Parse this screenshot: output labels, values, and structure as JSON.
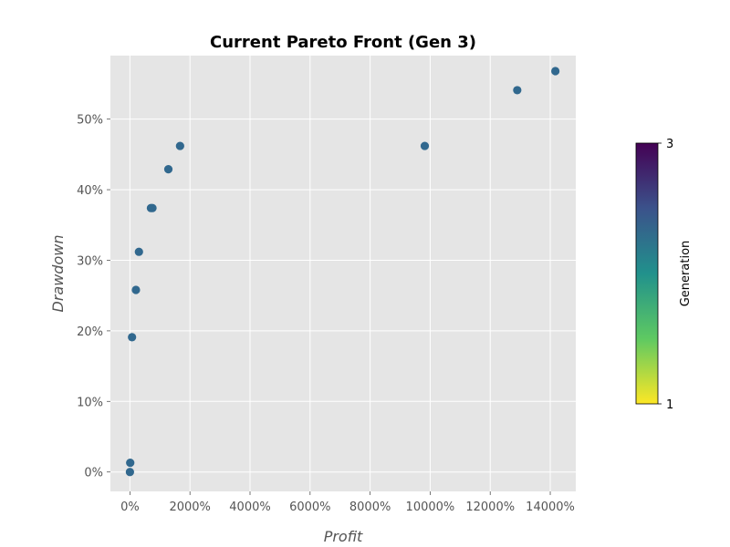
{
  "chart_data": {
    "type": "scatter",
    "title": "Current Pareto Front (Gen 3)",
    "xlabel": "Profit",
    "ylabel": "Drawdown",
    "x_unit": "%",
    "y_unit": "%",
    "xlim": [
      -650,
      14850
    ],
    "ylim": [
      -2.75,
      59.0
    ],
    "xticks": [
      0,
      2000,
      4000,
      6000,
      8000,
      10000,
      12000,
      14000
    ],
    "yticks": [
      0,
      10,
      20,
      30,
      40,
      50
    ],
    "xtick_labels": [
      "0%",
      "2000%",
      "4000%",
      "6000%",
      "8000%",
      "10000%",
      "12000%",
      "14000%"
    ],
    "ytick_labels": [
      "0%",
      "10%",
      "20%",
      "30%",
      "40%",
      "50%"
    ],
    "grid": true,
    "style": "ggplot",
    "marker_color": "#31688e",
    "points": [
      {
        "x": 0,
        "y": 0.0,
        "generation": 3
      },
      {
        "x": 10,
        "y": 1.3,
        "generation": 3
      },
      {
        "x": 70,
        "y": 19.1,
        "generation": 3
      },
      {
        "x": 200,
        "y": 25.8,
        "generation": 3
      },
      {
        "x": 300,
        "y": 31.2,
        "generation": 3
      },
      {
        "x": 700,
        "y": 37.4,
        "generation": 3
      },
      {
        "x": 750,
        "y": 37.4,
        "generation": 3
      },
      {
        "x": 1280,
        "y": 42.9,
        "generation": 3
      },
      {
        "x": 1670,
        "y": 46.2,
        "generation": 3
      },
      {
        "x": 9820,
        "y": 46.2,
        "generation": 3
      },
      {
        "x": 12900,
        "y": 54.1,
        "generation": 3
      },
      {
        "x": 14170,
        "y": 56.8,
        "generation": 3
      }
    ],
    "colorbar": {
      "label": "Generation",
      "min": 1,
      "max": 3,
      "tick_labels": [
        "3",
        "1"
      ],
      "colormap": "viridis_r",
      "colormap_stops": [
        "#fde725",
        "#5ec962",
        "#21918c",
        "#3b528b",
        "#440154"
      ]
    }
  }
}
